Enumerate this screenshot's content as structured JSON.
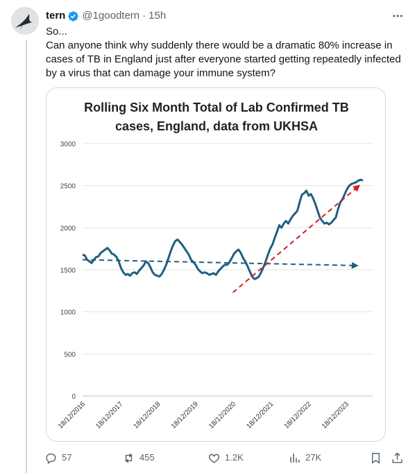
{
  "tweet": {
    "display_name": "tern",
    "verified": true,
    "handle": "@1goodtern",
    "separator": "·",
    "time": "15h",
    "text_lines": [
      "So...",
      "Can anyone think why suddenly there would be a dramatic 80% increase in cases of TB in England just after everyone started getting repeatedly infected by a virus that can damage your immune system?"
    ]
  },
  "actions": {
    "replies": "57",
    "reposts": "455",
    "likes": "1.2K",
    "views": "27K"
  },
  "colors": {
    "verified": "#1d9bf0",
    "line": "#1e5f7e",
    "trend_up": "#d21f1f",
    "trend_flat": "#1e5f7e",
    "secondary_text": "#536471"
  },
  "icons": [
    "avatar-bird",
    "verified-icon",
    "more-icon",
    "reply-icon",
    "repost-icon",
    "like-icon",
    "views-icon",
    "bookmark-icon",
    "share-icon"
  ],
  "chart_data": {
    "type": "line",
    "title_lines": [
      "Rolling Six Month Total of Lab Confirmed  TB",
      "cases, England, data from UKHSA"
    ],
    "xlabel": "",
    "ylabel": "",
    "ylim": [
      0,
      3000
    ],
    "yticks": [
      "0",
      "500",
      "1000",
      "1500",
      "2000",
      "2500",
      "3000"
    ],
    "xticks": [
      "18/12/2016",
      "18/12/2017",
      "18/12/2018",
      "18/12/2019",
      "18/12/2020",
      "18/12/2021",
      "18/12/2022",
      "18/12/2023"
    ],
    "x_start": 2016.96,
    "x_step_years": 1,
    "grid": true,
    "legend": "none",
    "series": [
      {
        "x": [
          2016.96,
          2017.02,
          2017.08,
          2017.14,
          2017.2,
          2017.26,
          2017.32,
          2017.38,
          2017.44,
          2017.5,
          2017.56,
          2017.62,
          2017.68,
          2017.74,
          2017.8,
          2017.86,
          2017.92,
          2017.98,
          2018.04,
          2018.1,
          2018.16,
          2018.22,
          2018.28,
          2018.34,
          2018.4,
          2018.46,
          2018.52,
          2018.58,
          2018.64,
          2018.7,
          2018.76,
          2018.82,
          2018.88,
          2018.94,
          2019.0,
          2019.06,
          2019.12,
          2019.18,
          2019.24,
          2019.3,
          2019.36,
          2019.42,
          2019.48,
          2019.54,
          2019.6,
          2019.66,
          2019.72,
          2019.78,
          2019.84,
          2019.9,
          2019.96,
          2020.02,
          2020.08,
          2020.14,
          2020.2,
          2020.26,
          2020.32,
          2020.38,
          2020.44,
          2020.5,
          2020.56,
          2020.62,
          2020.68,
          2020.74,
          2020.8,
          2020.86,
          2020.92,
          2020.98,
          2021.04,
          2021.1,
          2021.16,
          2021.22,
          2021.28,
          2021.34,
          2021.4,
          2021.46,
          2021.52,
          2021.58,
          2021.64,
          2021.7,
          2021.76,
          2021.82,
          2021.88,
          2021.94,
          2022.0,
          2022.06,
          2022.12,
          2022.18,
          2022.24,
          2022.3,
          2022.36,
          2022.42,
          2022.48,
          2022.54,
          2022.6,
          2022.66,
          2022.72,
          2022.78,
          2022.84,
          2022.9,
          2022.96,
          2023.02,
          2023.08,
          2023.14,
          2023.2,
          2023.26,
          2023.32,
          2023.38,
          2023.44,
          2023.5,
          2023.56,
          2023.62,
          2023.68,
          2023.74,
          2023.8,
          2023.86,
          2023.92,
          2023.98,
          2024.04,
          2024.1,
          2024.16,
          2024.22,
          2024.28,
          2024.34,
          2024.4
        ],
        "values": [
          1680,
          1670,
          1620,
          1600,
          1580,
          1620,
          1650,
          1660,
          1700,
          1720,
          1740,
          1760,
          1730,
          1690,
          1680,
          1650,
          1600,
          1520,
          1470,
          1440,
          1450,
          1430,
          1460,
          1470,
          1450,
          1490,
          1520,
          1550,
          1600,
          1580,
          1530,
          1470,
          1440,
          1430,
          1420,
          1450,
          1500,
          1560,
          1640,
          1720,
          1790,
          1840,
          1860,
          1830,
          1800,
          1760,
          1720,
          1680,
          1620,
          1590,
          1560,
          1510,
          1480,
          1460,
          1470,
          1460,
          1440,
          1450,
          1460,
          1440,
          1480,
          1510,
          1540,
          1560,
          1560,
          1590,
          1640,
          1690,
          1720,
          1740,
          1700,
          1640,
          1600,
          1540,
          1480,
          1420,
          1390,
          1400,
          1420,
          1470,
          1530,
          1600,
          1680,
          1750,
          1800,
          1880,
          1950,
          2030,
          2000,
          2050,
          2080,
          2050,
          2100,
          2140,
          2170,
          2200,
          2300,
          2390,
          2410,
          2440,
          2380,
          2400,
          2350,
          2280,
          2200,
          2120,
          2080,
          2050,
          2060,
          2040,
          2060,
          2090,
          2120,
          2220,
          2300,
          2340,
          2400,
          2460,
          2500,
          2520,
          2530,
          2540,
          2560,
          2570,
          2560
        ]
      }
    ],
    "trend_lines": [
      {
        "name": "flat",
        "x": [
          2016.96,
          2024.25
        ],
        "values": [
          1620,
          1550
        ],
        "style": "dashed",
        "color": "#1e5f7e"
      },
      {
        "name": "rising",
        "x": [
          2020.95,
          2024.3
        ],
        "values": [
          1230,
          2500
        ],
        "style": "dashed",
        "color": "#d21f1f"
      }
    ]
  }
}
